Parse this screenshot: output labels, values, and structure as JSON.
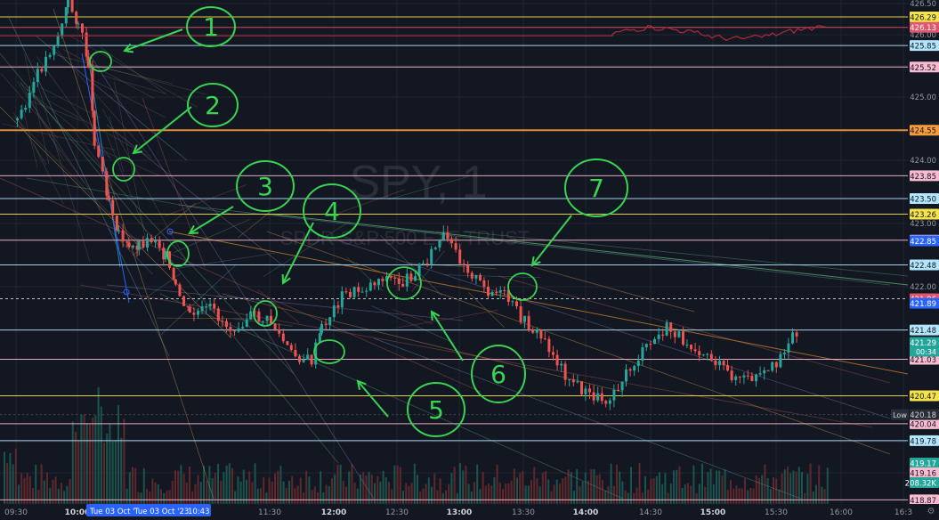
{
  "chart_data": {
    "type": "candlestick",
    "watermark": {
      "symbol": "SPY, 1",
      "name": "SPDR S&P 500 ETF TRUST"
    },
    "x_ticks": [
      "09:30",
      "10:00",
      "11:30",
      "12:00",
      "12:30",
      "13:00",
      "13:30",
      "14:00",
      "14:30",
      "15:00",
      "15:30",
      "16:00",
      "16:3"
    ],
    "date_badges": [
      "Tue 03 Oct '",
      "Tue 03 Oct '23",
      "10:43"
    ],
    "y_ticks": [
      "426.50",
      "426.00",
      "425.50",
      "425.00",
      "424.00",
      "423.00",
      "422.00",
      "419.50",
      "419.00"
    ],
    "ylim": [
      418.5,
      426.6
    ],
    "price_lines": [
      {
        "price": 426.29,
        "label": "426.29",
        "color": "#f5e34b"
      },
      {
        "price": 426.13,
        "label": "426.13",
        "color": "#e0566e"
      },
      {
        "price": 425.85,
        "label": "425.85",
        "color": "#b3e5fc"
      },
      {
        "price": 425.52,
        "label": "425.52",
        "color": "#f8bbd0"
      },
      {
        "price": 424.55,
        "label": "424.55",
        "color": "#f89b3a"
      },
      {
        "price": 423.85,
        "label": "423.85",
        "color": "#f8bbd0"
      },
      {
        "price": 423.5,
        "label": "423.50",
        "color": "#b3e5fc"
      },
      {
        "price": 423.26,
        "label": "423.26",
        "color": "#f5e34b"
      },
      {
        "price": 422.86,
        "label": "422.86",
        "color": "#f8bbd0"
      },
      {
        "price": 422.48,
        "label": "422.48",
        "color": "#b3e5fc"
      },
      {
        "price": 421.96,
        "label": "421.96",
        "color": "#e0566e"
      },
      {
        "price": 421.48,
        "label": "421.48",
        "color": "#b3e5fc"
      },
      {
        "price": 421.03,
        "label": "421.03",
        "color": "#f8bbd0"
      },
      {
        "price": 420.47,
        "label": "420.47",
        "color": "#f5e34b"
      },
      {
        "price": 420.04,
        "label": "420.04",
        "color": "#f8bbd0"
      },
      {
        "price": 419.78,
        "label": "419.78",
        "color": "#b3e5fc"
      },
      {
        "price": 418.87,
        "label": "418.87",
        "color": "#f8bbd0"
      }
    ],
    "badges": [
      {
        "price": 422.85,
        "label": "422.85",
        "bg": "#2962ff",
        "fg": "#ffffff"
      },
      {
        "price": 421.89,
        "label": "421.89",
        "bg": "#2962ff",
        "fg": "#ffffff"
      },
      {
        "price": 421.29,
        "label": "421.29",
        "sub": "00:34",
        "bg": "#26a69a",
        "fg": "#ffffff"
      },
      {
        "price": 420.18,
        "label": "420.18",
        "tag": "Low",
        "bg": "#2a2e39",
        "fg": "#d1d4dc"
      },
      {
        "price": 419.17,
        "label": "419.17",
        "bg": "#26a69a",
        "fg": "#ffffff"
      },
      {
        "price": 419.16,
        "label": "419.16",
        "bg": "#f8bbd0",
        "fg": "#131722"
      },
      {
        "price": 419.0,
        "label": "208.32K",
        "bg": "#26a69a",
        "fg": "#ffffff"
      }
    ],
    "annotation_numbers": [
      "1",
      "2",
      "3",
      "4",
      "5",
      "6",
      "7"
    ],
    "close_path": [
      [
        "09:30",
        424.7
      ],
      [
        "09:40",
        425.4
      ],
      [
        "09:50",
        426.0
      ],
      [
        "09:55",
        426.5
      ],
      [
        "10:00",
        426.2
      ],
      [
        "10:05",
        425.6
      ],
      [
        "10:08",
        424.4
      ],
      [
        "10:12",
        423.9
      ],
      [
        "10:15",
        423.5
      ],
      [
        "10:20",
        423.0
      ],
      [
        "10:25",
        422.7
      ],
      [
        "10:30",
        422.8
      ],
      [
        "10:38",
        422.9
      ],
      [
        "10:43",
        422.6
      ],
      [
        "10:48",
        422.1
      ],
      [
        "10:55",
        421.7
      ],
      [
        "11:05",
        421.8
      ],
      [
        "11:15",
        421.5
      ],
      [
        "11:25",
        421.7
      ],
      [
        "11:35",
        421.6
      ],
      [
        "11:45",
        421.1
      ],
      [
        "11:55",
        421.0
      ],
      [
        "12:00",
        421.5
      ],
      [
        "12:10",
        422.0
      ],
      [
        "12:20",
        422.1
      ],
      [
        "12:30",
        422.3
      ],
      [
        "12:40",
        422.2
      ],
      [
        "12:50",
        422.5
      ],
      [
        "13:00",
        422.9
      ],
      [
        "13:10",
        422.5
      ],
      [
        "13:20",
        422.1
      ],
      [
        "13:30",
        422.0
      ],
      [
        "13:40",
        421.6
      ],
      [
        "13:50",
        421.3
      ],
      [
        "14:00",
        420.8
      ],
      [
        "14:10",
        420.5
      ],
      [
        "14:20",
        420.4
      ],
      [
        "14:30",
        420.8
      ],
      [
        "14:40",
        421.2
      ],
      [
        "14:50",
        421.5
      ],
      [
        "15:00",
        421.3
      ],
      [
        "15:10",
        421.1
      ],
      [
        "15:20",
        420.8
      ],
      [
        "15:30",
        420.7
      ],
      [
        "15:40",
        420.8
      ],
      [
        "15:50",
        421.3
      ],
      [
        "15:55",
        421.5
      ]
    ]
  }
}
